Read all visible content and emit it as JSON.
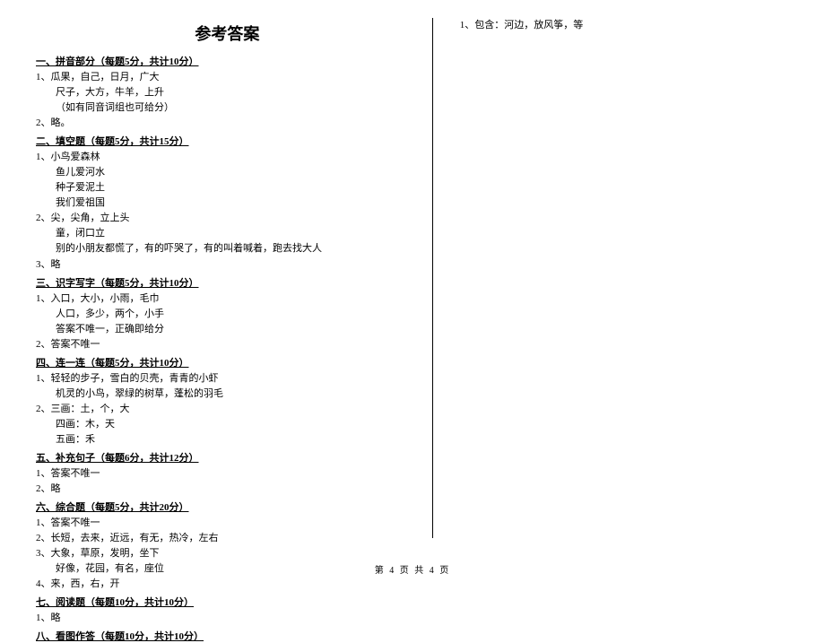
{
  "title": "参考答案",
  "sections": [
    {
      "header": "一、拼音部分（每题5分，共计10分）",
      "items": [
        {
          "num": "1、",
          "lines": [
            "瓜果，自己，日月，广大",
            "尺子，大方，牛羊，上升",
            "（如有同音词组也可给分）"
          ]
        },
        {
          "num": "2、",
          "lines": [
            "略。"
          ]
        }
      ]
    },
    {
      "header": "二、填空题（每题5分，共计15分）",
      "items": [
        {
          "num": "1、",
          "lines": [
            "小鸟爱森林",
            "鱼儿爱河水",
            "种子爱泥土",
            "我们爱祖国"
          ]
        },
        {
          "num": "2、",
          "lines": [
            "尖，尖角，立上头",
            "童，闭口立",
            "别的小朋友都慌了，有的吓哭了，有的叫着喊着，跑去找大人"
          ]
        },
        {
          "num": "3、",
          "lines": [
            "略"
          ]
        }
      ]
    },
    {
      "header": "三、识字写字（每题5分，共计10分）",
      "items": [
        {
          "num": "1、",
          "lines": [
            "入口，大小，小雨，毛巾",
            "人口，多少，两个，小手",
            "答案不唯一，正确即给分"
          ]
        },
        {
          "num": "2、",
          "lines": [
            "答案不唯一"
          ]
        }
      ]
    },
    {
      "header": "四、连一连（每题5分，共计10分）",
      "items": [
        {
          "num": "1、",
          "lines": [
            "轻轻的步子，雪白的贝壳，青青的小虾",
            "机灵的小鸟，翠绿的树草，蓬松的羽毛"
          ]
        },
        {
          "num": "2、",
          "lines": [
            "三画：土，个，大",
            "四画：木，天",
            "五画：禾"
          ]
        }
      ]
    },
    {
      "header": "五、补充句子（每题6分，共计12分）",
      "items": [
        {
          "num": "1、",
          "lines": [
            "答案不唯一"
          ]
        },
        {
          "num": "2、",
          "lines": [
            "略"
          ]
        }
      ]
    },
    {
      "header": "六、综合题（每题5分，共计20分）",
      "items": [
        {
          "num": "1、",
          "lines": [
            "答案不唯一"
          ]
        },
        {
          "num": "2、",
          "lines": [
            "长短，去来，近远，有无，热冷，左右"
          ]
        },
        {
          "num": "3、",
          "lines": [
            "大象，草原，发明，坐下",
            "好像，花园，有名，座位"
          ]
        },
        {
          "num": "4、",
          "lines": [
            "来，西，右，开"
          ]
        }
      ]
    },
    {
      "header": "七、阅读题（每题10分，共计10分）",
      "items": [
        {
          "num": "1、",
          "lines": [
            "略"
          ]
        }
      ]
    },
    {
      "header": "八、看图作答（每题10分，共计10分）",
      "items": []
    }
  ],
  "right_column": {
    "item": "1、包含：河边，放风筝，等"
  },
  "footer": "第 4 页  共 4 页",
  "colors": {
    "text": "#000000",
    "background": "#ffffff",
    "divider": "#000000"
  },
  "fonts": {
    "title_size": 18,
    "body_size": 11,
    "footer_size": 10
  }
}
